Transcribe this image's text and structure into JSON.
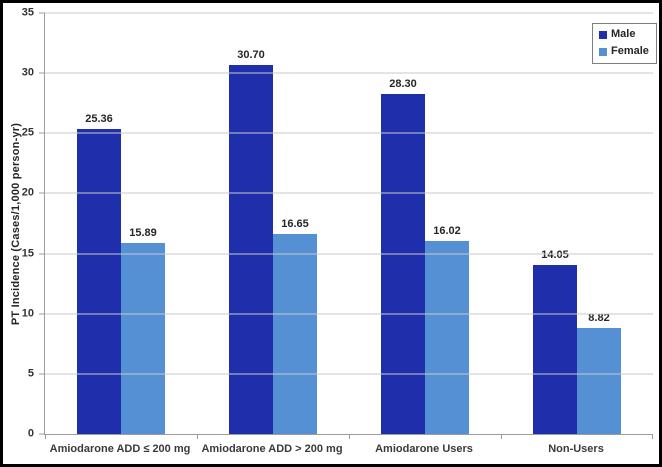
{
  "chart_data": {
    "type": "bar",
    "title": "",
    "categories": [
      "Amiodarone ADD ≤ 200 mg",
      "Amiodarone ADD > 200 mg",
      "Amiodarone Users",
      "Non-Users"
    ],
    "series": [
      {
        "name": "Male",
        "color": "#1F2EAA",
        "values": [
          25.36,
          30.7,
          28.3,
          14.05
        ],
        "labels": [
          "25.36",
          "30.70",
          "28.30",
          "14.05"
        ]
      },
      {
        "name": "Female",
        "color": "#5590D5",
        "values": [
          15.89,
          16.65,
          16.02,
          8.82
        ],
        "labels": [
          "15.89",
          "16.65",
          "16.02",
          "8.82"
        ]
      }
    ],
    "xlabel": "",
    "ylabel": "PT Incidence (Cases/1,000 person-yr)",
    "ylim": [
      0,
      35
    ],
    "yticks": [
      0,
      5,
      10,
      15,
      20,
      25,
      30,
      35
    ],
    "grid": true,
    "legend_position": "top-right"
  },
  "colors": {
    "gridline": "#C9C9C9",
    "axis_line": "#9C9C9C",
    "text": "#262626",
    "frame_border": "#000000",
    "legend_border": "#7F7F7F"
  }
}
